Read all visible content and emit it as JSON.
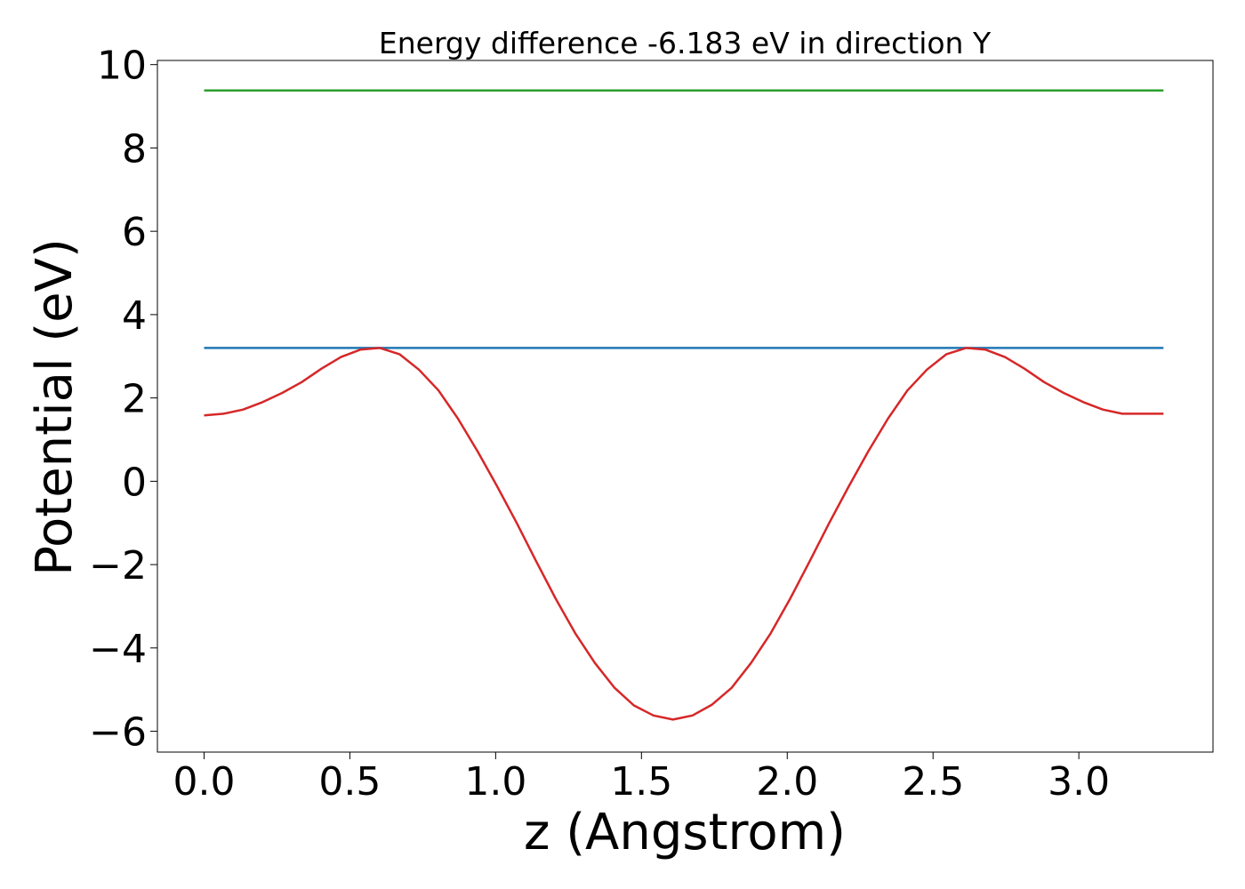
{
  "chart_data": {
    "type": "line",
    "title": "Energy difference -6.183 eV in direction Y",
    "xlabel": "z (Angstrom)",
    "ylabel": "Potential (eV)",
    "xlim": [
      -0.16,
      3.46
    ],
    "ylim": [
      -6.5,
      10.1
    ],
    "grid": false,
    "x_ticks": [
      0.0,
      0.5,
      1.0,
      1.5,
      2.0,
      2.5,
      3.0
    ],
    "x_tick_labels": [
      "0.0",
      "0.5",
      "1.0",
      "1.5",
      "2.0",
      "2.5",
      "3.0"
    ],
    "y_ticks": [
      -6,
      -4,
      -2,
      0,
      2,
      4,
      6,
      8,
      10
    ],
    "y_tick_labels": [
      "−6",
      "−4",
      "−2",
      "0",
      "2",
      "4",
      "6",
      "8",
      "10"
    ],
    "series": [
      {
        "color": "#2ca02c",
        "x": [
          0.0,
          3.29
        ],
        "y": [
          9.38,
          9.38
        ]
      },
      {
        "color": "#1f77b4",
        "x": [
          0.0,
          3.29
        ],
        "y": [
          3.2,
          3.2
        ]
      },
      {
        "color": "#d62728",
        "x": [
          0.0,
          0.067,
          0.134,
          0.201,
          0.268,
          0.335,
          0.402,
          0.469,
          0.536,
          0.603,
          0.67,
          0.737,
          0.804,
          0.871,
          0.938,
          1.005,
          1.072,
          1.139,
          1.206,
          1.273,
          1.34,
          1.407,
          1.474,
          1.541,
          1.608,
          1.675,
          1.742,
          1.809,
          1.876,
          1.943,
          2.01,
          2.077,
          2.144,
          2.211,
          2.278,
          2.345,
          2.412,
          2.479,
          2.546,
          2.613,
          2.68,
          2.747,
          2.814,
          2.881,
          2.948,
          3.015,
          3.082,
          3.149,
          3.216,
          3.29
        ],
        "y": [
          1.58,
          1.62,
          1.72,
          1.9,
          2.12,
          2.38,
          2.7,
          2.98,
          3.16,
          3.2,
          3.05,
          2.68,
          2.18,
          1.5,
          0.72,
          -0.12,
          -1.0,
          -1.92,
          -2.82,
          -3.65,
          -4.36,
          -4.95,
          -5.38,
          -5.62,
          -5.72,
          -5.62,
          -5.36,
          -4.96,
          -4.36,
          -3.65,
          -2.82,
          -1.92,
          -1.0,
          -0.12,
          0.72,
          1.5,
          2.18,
          2.68,
          3.05,
          3.2,
          3.16,
          2.98,
          2.7,
          2.38,
          2.12,
          1.9,
          1.72,
          1.62,
          1.62,
          1.62
        ]
      }
    ]
  }
}
